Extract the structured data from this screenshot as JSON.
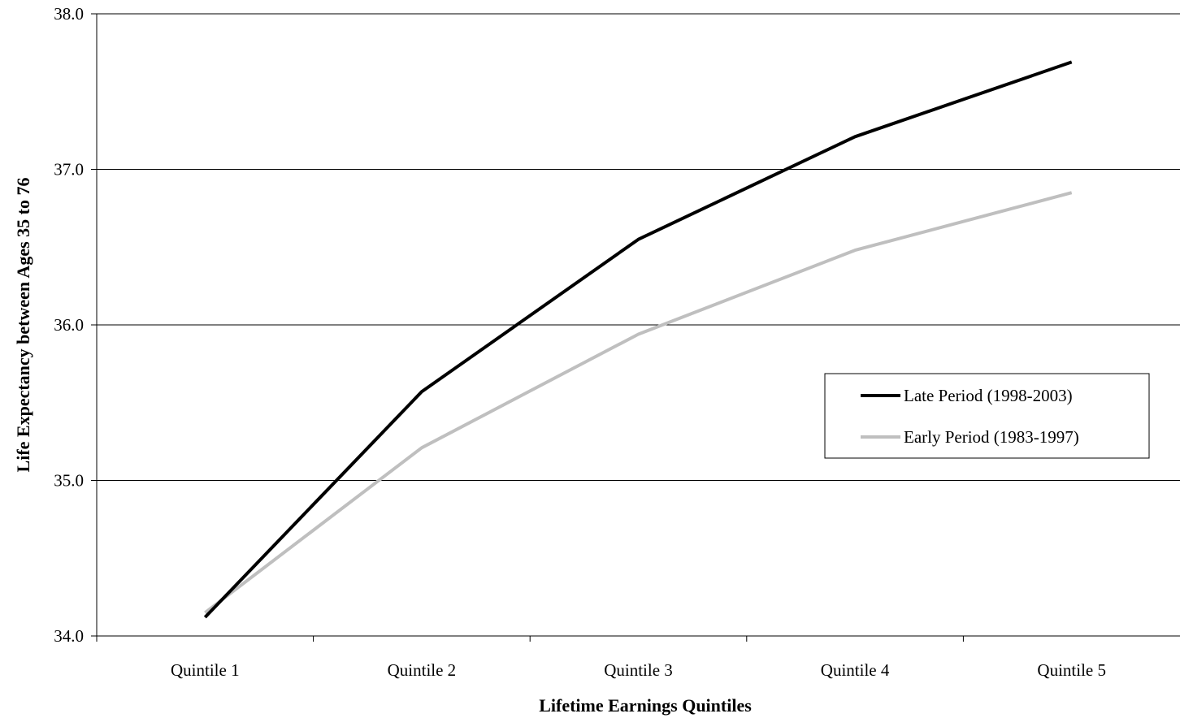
{
  "chart_data": {
    "type": "line",
    "title": "",
    "xlabel": "Lifetime Earnings Quintiles",
    "ylabel": "Life Expectancy between Ages 35 to 76",
    "categories": [
      "Quintile 1",
      "Quintile 2",
      "Quintile 3",
      "Quintile 4",
      "Quintile 5"
    ],
    "ylim": [
      34.0,
      38.0
    ],
    "yticks": [
      "34.0",
      "35.0",
      "36.0",
      "37.0",
      "38.0"
    ],
    "grid": true,
    "legend_position": "right",
    "series": [
      {
        "name": "Late Period (1998-2003)",
        "color": "#000000",
        "values": [
          34.12,
          35.57,
          36.55,
          37.21,
          37.69
        ]
      },
      {
        "name": "Early Period (1983-1997)",
        "color": "#bfbfbf",
        "values": [
          34.15,
          35.21,
          35.94,
          36.48,
          36.85
        ]
      }
    ]
  }
}
